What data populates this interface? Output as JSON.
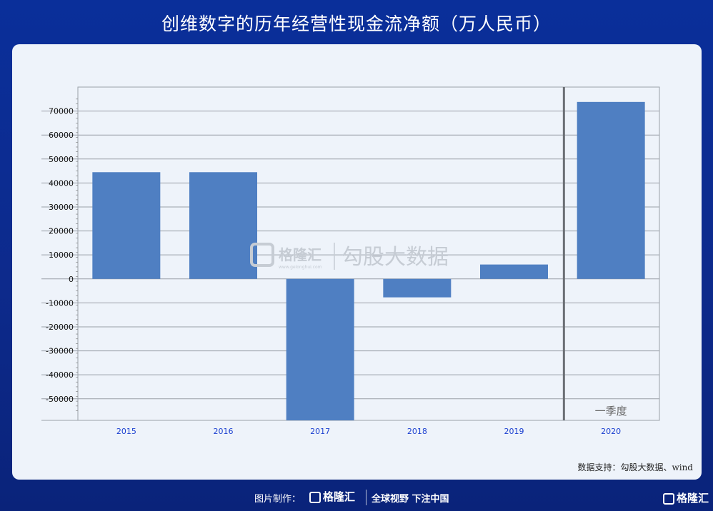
{
  "title": "创维数字的历年经营性现金流净额（万人民币）",
  "source_note": "数据支持：勾股大数据、wind",
  "watermark": {
    "brand": "格隆汇",
    "site": "www.gelonghui.com",
    "product": "勾股大数据"
  },
  "footer": {
    "credit_label": "图片制作：",
    "logo_text": "格隆汇",
    "slogan": "全球视野 下注中国",
    "corner_logo_text": "格隆汇"
  },
  "chart_data": {
    "type": "bar",
    "categories": [
      "2015",
      "2016",
      "2017",
      "2018",
      "2019",
      "2020"
    ],
    "values": [
      44500,
      44500,
      -59000,
      -7700,
      6000,
      73800
    ],
    "ylim": [
      -59000,
      80000
    ],
    "yticks": [
      -50000,
      -40000,
      -30000,
      -20000,
      -10000,
      0,
      10000,
      20000,
      30000,
      40000,
      50000,
      60000,
      70000
    ],
    "ytick_labels": [
      "-50000",
      "-40000",
      "-30000",
      "-20000",
      "-10000",
      "0",
      "10000",
      "20000",
      "30000",
      "40000",
      "50000",
      "60000",
      "70000"
    ],
    "grid": true,
    "bar_color": "#4f7fc2",
    "annotation": "一季度",
    "divider_before_category": "2020"
  }
}
